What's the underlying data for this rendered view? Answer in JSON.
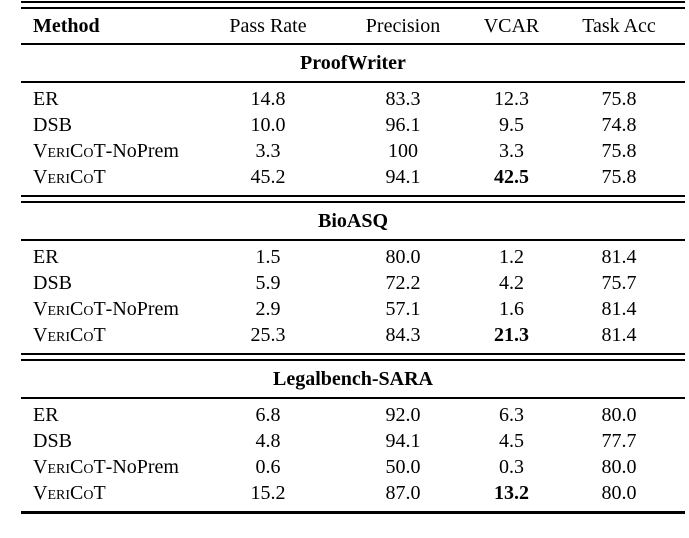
{
  "colors": {
    "text": "#000000",
    "background": "#ffffff",
    "rule": "#000000"
  },
  "table": {
    "columns": [
      "Method",
      "Pass Rate",
      "Precision",
      "VCAR",
      "Task Acc"
    ],
    "sections": [
      {
        "title": "ProofWriter",
        "rows": [
          {
            "method_smallcaps": "",
            "method_text": "ER",
            "values": [
              "14.8",
              "83.3",
              "12.3",
              "75.8"
            ],
            "bold_value_indexes": []
          },
          {
            "method_smallcaps": "",
            "method_text": "DSB",
            "values": [
              "10.0",
              "96.1",
              "9.5",
              "74.8"
            ],
            "bold_value_indexes": []
          },
          {
            "method_smallcaps": "VeriCoT",
            "method_text": "-NoPrem",
            "values": [
              "3.3",
              "100",
              "3.3",
              "75.8"
            ],
            "bold_value_indexes": []
          },
          {
            "method_smallcaps": "VeriCoT",
            "method_text": "",
            "values": [
              "45.2",
              "94.1",
              "42.5",
              "75.8"
            ],
            "bold_value_indexes": [
              2
            ]
          }
        ]
      },
      {
        "title": "BioASQ",
        "rows": [
          {
            "method_smallcaps": "",
            "method_text": "ER",
            "values": [
              "1.5",
              "80.0",
              "1.2",
              "81.4"
            ],
            "bold_value_indexes": []
          },
          {
            "method_smallcaps": "",
            "method_text": "DSB",
            "values": [
              "5.9",
              "72.2",
              "4.2",
              "75.7"
            ],
            "bold_value_indexes": []
          },
          {
            "method_smallcaps": "VeriCoT",
            "method_text": "-NoPrem",
            "values": [
              "2.9",
              "57.1",
              "1.6",
              "81.4"
            ],
            "bold_value_indexes": []
          },
          {
            "method_smallcaps": "VeriCoT",
            "method_text": "",
            "values": [
              "25.3",
              "84.3",
              "21.3",
              "81.4"
            ],
            "bold_value_indexes": [
              2
            ]
          }
        ]
      },
      {
        "title": "Legalbench-SARA",
        "rows": [
          {
            "method_smallcaps": "",
            "method_text": "ER",
            "values": [
              "6.8",
              "92.0",
              "6.3",
              "80.0"
            ],
            "bold_value_indexes": []
          },
          {
            "method_smallcaps": "",
            "method_text": "DSB",
            "values": [
              "4.8",
              "94.1",
              "4.5",
              "77.7"
            ],
            "bold_value_indexes": []
          },
          {
            "method_smallcaps": "VeriCoT",
            "method_text": "-NoPrem",
            "values": [
              "0.6",
              "50.0",
              "0.3",
              "80.0"
            ],
            "bold_value_indexes": []
          },
          {
            "method_smallcaps": "VeriCoT",
            "method_text": "",
            "values": [
              "15.2",
              "87.0",
              "13.2",
              "80.0"
            ],
            "bold_value_indexes": [
              2
            ]
          }
        ]
      }
    ]
  }
}
